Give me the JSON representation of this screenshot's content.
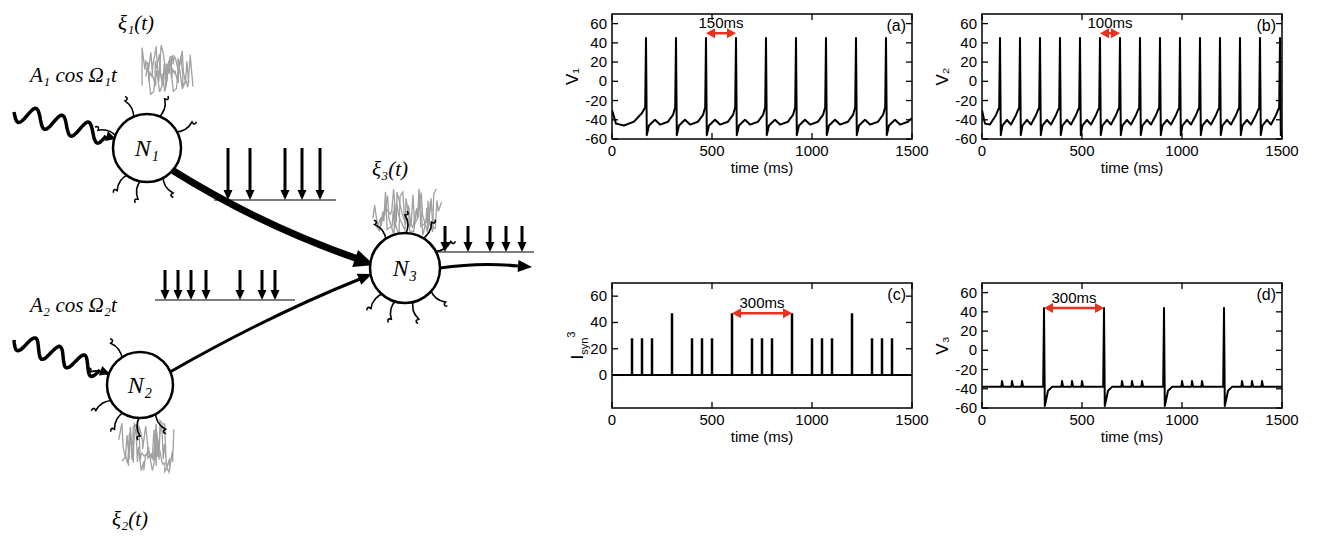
{
  "diagram": {
    "nodes": [
      "N₁",
      "N₂",
      "N₃"
    ],
    "inputs": [
      "A₁ cos Ω₁t",
      "A₂ cos Ω₂t"
    ],
    "noises": [
      "ξ₁(t)",
      "ξ₂(t)",
      "ξ₃(t)"
    ]
  },
  "chart_data": [
    {
      "type": "line",
      "panel_label": "(a)",
      "x_label": "time (ms)",
      "y_label": "V₁",
      "color": "#000000",
      "xlim": [
        0,
        1500
      ],
      "ylim": [
        -60,
        70
      ],
      "xticks": [
        0,
        500,
        1000,
        1500
      ],
      "yticks": [
        -60,
        -40,
        -20,
        0,
        20,
        40,
        60
      ],
      "x": [
        0,
        20,
        60,
        110,
        150,
        166,
        170,
        174,
        185,
        215,
        240,
        280,
        305,
        316,
        320,
        324,
        335,
        365,
        390,
        430,
        455,
        466,
        470,
        474,
        485,
        515,
        540,
        580,
        605,
        616,
        620,
        624,
        635,
        665,
        690,
        730,
        755,
        766,
        770,
        774,
        785,
        815,
        840,
        880,
        905,
        916,
        920,
        924,
        935,
        965,
        990,
        1030,
        1055,
        1066,
        1070,
        1074,
        1085,
        1115,
        1140,
        1180,
        1205,
        1216,
        1220,
        1224,
        1235,
        1265,
        1290,
        1330,
        1355,
        1366,
        1370,
        1374,
        1385,
        1415,
        1440,
        1480,
        1500
      ],
      "values": [
        -30,
        -44,
        -46,
        -42,
        -33,
        -27,
        45,
        -56,
        -46,
        -40,
        -45,
        -42,
        -35,
        -27,
        45,
        -56,
        -46,
        -40,
        -45,
        -42,
        -35,
        -27,
        45,
        -56,
        -46,
        -40,
        -45,
        -42,
        -35,
        -27,
        45,
        -56,
        -46,
        -40,
        -45,
        -42,
        -35,
        -27,
        45,
        -56,
        -46,
        -40,
        -45,
        -42,
        -35,
        -27,
        45,
        -56,
        -46,
        -40,
        -45,
        -42,
        -35,
        -27,
        45,
        -56,
        -46,
        -40,
        -45,
        -42,
        -35,
        -27,
        45,
        -56,
        -46,
        -40,
        -45,
        -42,
        -35,
        -27,
        45,
        -56,
        -46,
        -40,
        -45,
        -42,
        -38
      ],
      "annotations": [
        {
          "text": "150ms",
          "x": [
            470,
            620
          ],
          "y": 50,
          "color": "#e8321e"
        }
      ]
    },
    {
      "type": "line",
      "panel_label": "(b)",
      "x_label": "time (ms)",
      "y_label": "V₂",
      "color": "#000000",
      "xlim": [
        0,
        1500
      ],
      "ylim": [
        -60,
        70
      ],
      "xticks": [
        0,
        500,
        1000,
        1500
      ],
      "yticks": [
        -60,
        -40,
        -20,
        0,
        20,
        40,
        60
      ],
      "x": [
        0,
        15,
        40,
        70,
        86,
        90,
        94,
        102,
        125,
        145,
        170,
        186,
        190,
        194,
        202,
        225,
        245,
        270,
        286,
        290,
        294,
        302,
        325,
        345,
        370,
        386,
        390,
        394,
        402,
        425,
        445,
        470,
        486,
        490,
        494,
        502,
        525,
        545,
        570,
        586,
        590,
        594,
        602,
        625,
        645,
        670,
        686,
        690,
        694,
        702,
        725,
        745,
        770,
        786,
        790,
        794,
        802,
        825,
        845,
        870,
        886,
        890,
        894,
        902,
        925,
        945,
        970,
        986,
        990,
        994,
        1002,
        1025,
        1045,
        1070,
        1086,
        1090,
        1094,
        1102,
        1125,
        1145,
        1170,
        1186,
        1190,
        1194,
        1202,
        1225,
        1245,
        1270,
        1286,
        1290,
        1294,
        1302,
        1325,
        1345,
        1370,
        1386,
        1390,
        1394,
        1402,
        1425,
        1445,
        1470,
        1486,
        1490,
        1494,
        1500
      ],
      "values": [
        -30,
        -44,
        -45,
        -35,
        -27,
        45,
        -56,
        -46,
        -40,
        -45,
        -35,
        -27,
        45,
        -56,
        -46,
        -40,
        -45,
        -35,
        -27,
        45,
        -56,
        -46,
        -40,
        -45,
        -35,
        -27,
        45,
        -56,
        -46,
        -40,
        -45,
        -35,
        -27,
        45,
        -56,
        -46,
        -40,
        -45,
        -35,
        -27,
        45,
        -56,
        -46,
        -40,
        -45,
        -35,
        -27,
        45,
        -56,
        -46,
        -40,
        -45,
        -35,
        -27,
        45,
        -56,
        -46,
        -40,
        -45,
        -35,
        -27,
        45,
        -56,
        -46,
        -40,
        -45,
        -35,
        -27,
        45,
        -56,
        -46,
        -40,
        -45,
        -35,
        -27,
        45,
        -56,
        -46,
        -40,
        -45,
        -35,
        -27,
        45,
        -56,
        -46,
        -40,
        -45,
        -35,
        -27,
        45,
        -56,
        -46,
        -40,
        -45,
        -35,
        -27,
        45,
        -56,
        -46,
        -40,
        -45,
        -35,
        -27,
        45,
        -56,
        -48
      ],
      "annotations": [
        {
          "text": "100ms",
          "x": [
            590,
            690
          ],
          "y": 50,
          "color": "#e8321e"
        }
      ]
    },
    {
      "type": "stem",
      "panel_label": "(c)",
      "x_label": "time (ms)",
      "y_label": {
        "text": "I",
        "sub": "syn",
        "sup": "3"
      },
      "color": "#000000",
      "xlim": [
        0,
        1500
      ],
      "ylim": [
        -25,
        70
      ],
      "xticks": [
        0,
        500,
        1000,
        1500
      ],
      "yticks": [
        0,
        20,
        40,
        60
      ],
      "x": [
        100,
        150,
        200,
        300,
        400,
        450,
        500,
        600,
        700,
        750,
        800,
        900,
        1000,
        1050,
        1100,
        1200,
        1300,
        1350,
        1400
      ],
      "values": [
        28,
        28,
        28,
        47,
        28,
        28,
        28,
        47,
        28,
        28,
        28,
        47,
        28,
        28,
        28,
        47,
        28,
        28,
        28
      ],
      "annotations": [
        {
          "text": "300ms",
          "x": [
            600,
            900
          ],
          "y": 47,
          "color": "#e8321e"
        }
      ]
    },
    {
      "type": "line",
      "panel_label": "(d)",
      "x_label": "time (ms)",
      "y_label": "V₃",
      "color": "#000000",
      "xlim": [
        0,
        1500
      ],
      "ylim": [
        -60,
        70
      ],
      "xticks": [
        0,
        500,
        1000,
        1500
      ],
      "yticks": [
        -60,
        -40,
        -20,
        0,
        20,
        40,
        60
      ],
      "x": [
        0,
        97,
        100,
        106,
        147,
        150,
        156,
        197,
        200,
        206,
        306,
        310,
        314,
        330,
        350,
        397,
        400,
        406,
        447,
        450,
        456,
        497,
        500,
        506,
        606,
        610,
        614,
        630,
        650,
        697,
        700,
        706,
        747,
        750,
        756,
        797,
        800,
        806,
        906,
        910,
        914,
        930,
        950,
        997,
        1000,
        1006,
        1047,
        1050,
        1056,
        1097,
        1100,
        1106,
        1206,
        1210,
        1214,
        1230,
        1250,
        1297,
        1300,
        1306,
        1347,
        1350,
        1356,
        1397,
        1400,
        1406,
        1500
      ],
      "values": [
        -38,
        -38,
        -32,
        -38,
        -38,
        -32,
        -38,
        -38,
        -32,
        -38,
        -38,
        44,
        -58,
        -42,
        -38,
        -38,
        -32,
        -38,
        -38,
        -32,
        -38,
        -38,
        -32,
        -38,
        -38,
        44,
        -58,
        -42,
        -38,
        -38,
        -32,
        -38,
        -38,
        -32,
        -38,
        -38,
        -32,
        -38,
        -38,
        44,
        -58,
        -42,
        -38,
        -38,
        -32,
        -38,
        -38,
        -32,
        -38,
        -38,
        -32,
        -38,
        -38,
        44,
        -58,
        -42,
        -38,
        -38,
        -32,
        -38,
        -38,
        -32,
        -38,
        -38,
        -32,
        -38,
        -38
      ],
      "annotations": [
        {
          "text": "300ms",
          "x": [
            310,
            610
          ],
          "y": 44,
          "color": "#e8321e"
        }
      ]
    }
  ]
}
